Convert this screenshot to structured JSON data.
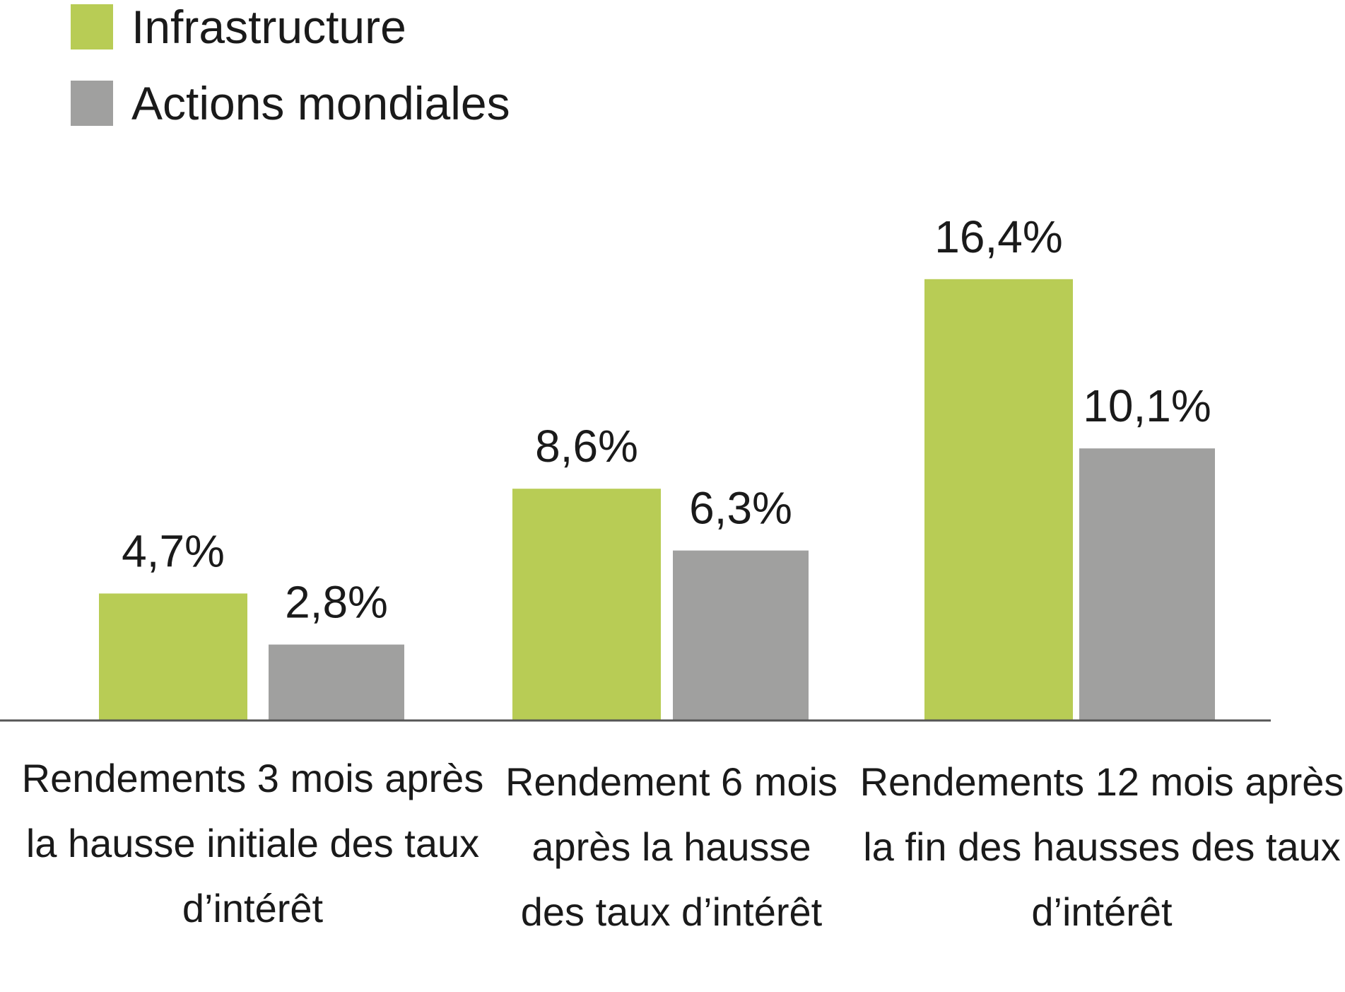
{
  "colors": {
    "infrastructure": "#b8cc55",
    "actions": "#a0a09f",
    "axis": "#555555"
  },
  "chart_data": {
    "type": "bar",
    "title": "",
    "xlabel": "",
    "ylabel": "",
    "ylim": [
      0,
      20
    ],
    "legend_position": "top-left",
    "grid": false,
    "categories": [
      "Rendements 3 mois après la hausse initiale des taux d’intérêt",
      "Rendement 6 mois après la hausse des taux d’intérêt",
      "Rendements 12 mois après la fin des hausses des taux d’intérêt"
    ],
    "series": [
      {
        "name": "Infrastructure",
        "values": [
          4.7,
          8.6,
          16.4
        ],
        "labels": [
          "4,7%",
          "8,6%",
          "16,4%"
        ]
      },
      {
        "name": "Actions mondiales",
        "values": [
          2.8,
          6.3,
          10.1
        ],
        "labels": [
          "2,8%",
          "6,3%",
          "10,1%"
        ]
      }
    ]
  }
}
